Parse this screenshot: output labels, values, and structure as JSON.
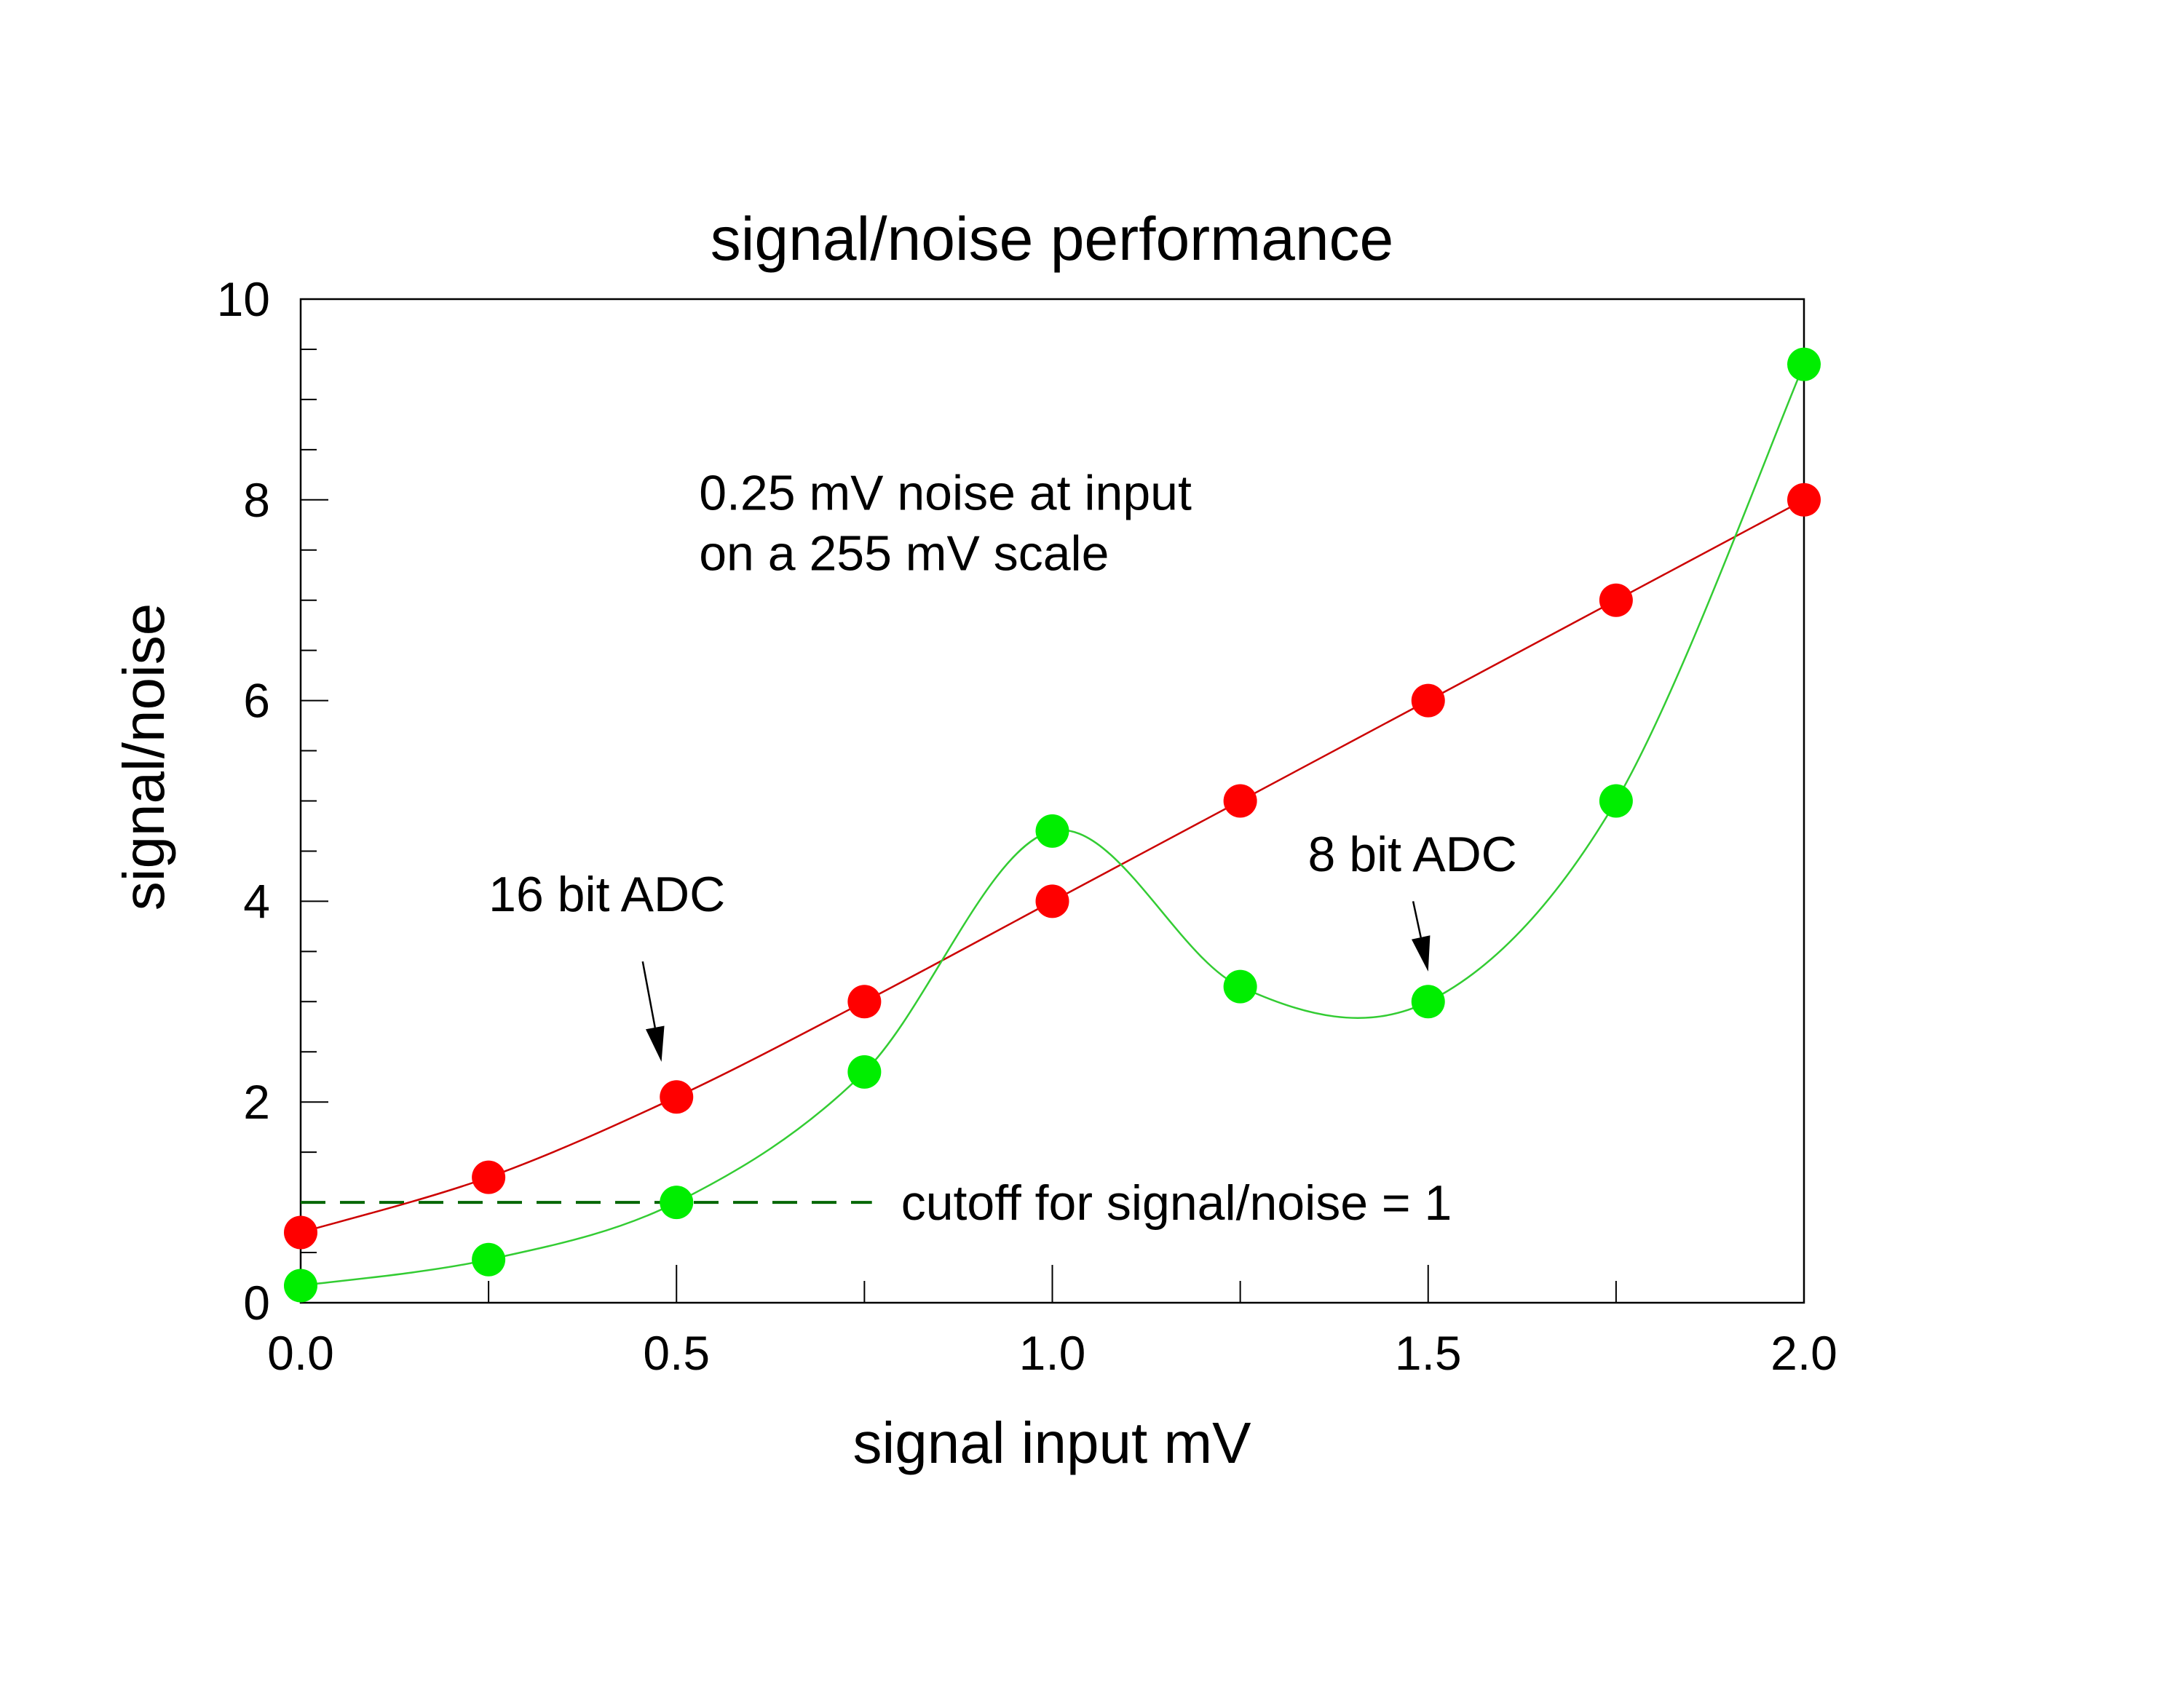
{
  "chart_data": {
    "type": "scatter",
    "title": "signal/noise performance",
    "xlabel": "signal input mV",
    "ylabel": "signal/noise",
    "xlim": [
      0,
      2
    ],
    "ylim": [
      0,
      10
    ],
    "x_ticks": [
      "0.0",
      "0.5",
      "1.0",
      "1.5",
      "2.0"
    ],
    "y_ticks": [
      "0",
      "2",
      "4",
      "6",
      "8",
      "10"
    ],
    "grid": false,
    "series": [
      {
        "name": "16 bit ADC",
        "color": "#ff0000",
        "line_color": "#cc0000",
        "x": [
          0,
          0.25,
          0.5,
          0.75,
          1.0,
          1.25,
          1.5,
          1.75,
          2.0
        ],
        "y": [
          0.7,
          1.25,
          2.05,
          3.0,
          4.0,
          5.0,
          6.0,
          7.0,
          8.0
        ]
      },
      {
        "name": "8 bit ADC",
        "color": "#00ee00",
        "line_color": "#33cc33",
        "x": [
          0,
          0.25,
          0.5,
          0.75,
          1.0,
          1.25,
          1.5,
          1.75,
          2.0
        ],
        "y": [
          0.17,
          0.43,
          1.0,
          2.3,
          4.7,
          3.15,
          3.0,
          5.0,
          9.35
        ]
      }
    ],
    "cutoff": {
      "y": 1,
      "x_end": 0.76,
      "label": "cutoff for signal/noise = 1",
      "color": "#006600"
    },
    "annotations": [
      {
        "text": "0.25 mV noise at input",
        "x": 0.53,
        "y": 7.9
      },
      {
        "text": "on a 255 mV scale",
        "x": 0.53,
        "y": 7.3
      },
      {
        "text": "16 bit ADC",
        "x": 0.25,
        "y": 3.9,
        "arrow_from": [
          0.455,
          3.4
        ],
        "arrow_to": [
          0.48,
          2.4
        ]
      },
      {
        "text": "8 bit ADC",
        "x": 1.34,
        "y": 4.3,
        "arrow_from": [
          1.48,
          4.0
        ],
        "arrow_to": [
          1.5,
          3.3
        ]
      }
    ]
  }
}
